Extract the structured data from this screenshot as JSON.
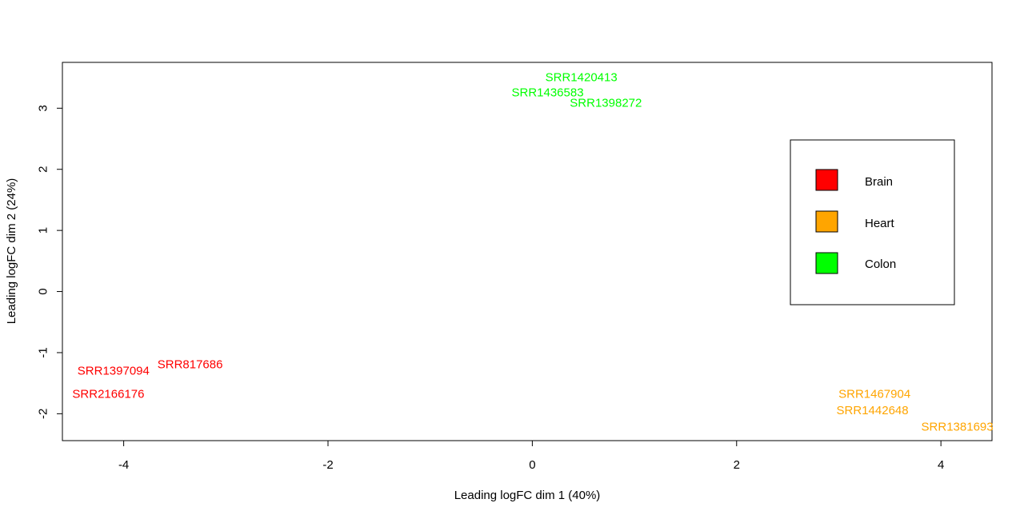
{
  "chart_data": {
    "type": "scatter",
    "title": "",
    "xlabel": "Leading logFC dim 1 (40%)",
    "ylabel": "Leading logFC dim 2 (24%)",
    "xlim": [
      -4.6,
      4.5
    ],
    "ylim": [
      -2.44,
      3.75
    ],
    "xticks": [
      -4,
      -2,
      0,
      2,
      4
    ],
    "yticks": [
      -2,
      -1,
      0,
      1,
      2,
      3
    ],
    "xtick_labels": [
      "-4",
      "-2",
      "0",
      "2",
      "4"
    ],
    "ytick_labels": [
      "-2",
      "-1",
      "0",
      "1",
      "2",
      "3"
    ],
    "grid": false,
    "legend_position": "right",
    "series": [
      {
        "name": "Brain",
        "color": "#ff0000",
        "points": [
          {
            "label": "SRR817686",
            "x": -3.35,
            "y": -1.2
          },
          {
            "label": "SRR1397094",
            "x": -4.1,
            "y": -1.3
          },
          {
            "label": "SRR2166176",
            "x": -4.15,
            "y": -1.68
          }
        ]
      },
      {
        "name": "Heart",
        "color": "#ffa500",
        "points": [
          {
            "label": "SRR1467904",
            "x": 3.35,
            "y": -1.68
          },
          {
            "label": "SRR1442648",
            "x": 3.33,
            "y": -1.95
          },
          {
            "label": "SRR1381693",
            "x": 4.16,
            "y": -2.22
          }
        ]
      },
      {
        "name": "Colon",
        "color": "#00ff00",
        "points": [
          {
            "label": "SRR1420413",
            "x": 0.48,
            "y": 3.5
          },
          {
            "label": "SRR1436583",
            "x": 0.15,
            "y": 3.25
          },
          {
            "label": "SRR1398272",
            "x": 0.72,
            "y": 3.08
          }
        ]
      }
    ]
  }
}
